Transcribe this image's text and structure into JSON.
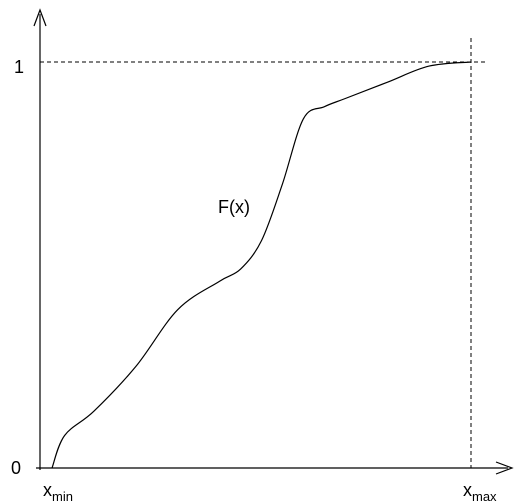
{
  "diagram": {
    "curve_label": "F(x)",
    "y_tick_top": "1",
    "y_tick_bottom": "0",
    "x_min": {
      "base": "x",
      "sub": "min"
    },
    "x_max": {
      "base": "x",
      "sub": "max"
    }
  },
  "chart_data": {
    "type": "line",
    "title": "",
    "xlabel": "",
    "ylabel": "",
    "ylim": [
      0,
      1
    ],
    "grid": false,
    "series": [
      {
        "name": "F(x)",
        "x": [
          0.0,
          0.03,
          0.1,
          0.2,
          0.3,
          0.4,
          0.45,
          0.5,
          0.55,
          0.6,
          0.65,
          0.7,
          0.8,
          0.9,
          1.0
        ],
        "y": [
          0.0,
          0.08,
          0.14,
          0.25,
          0.39,
          0.46,
          0.49,
          0.56,
          0.7,
          0.86,
          0.89,
          0.91,
          0.95,
          0.99,
          1.0
        ]
      }
    ],
    "reference_lines": [
      {
        "orientation": "horizontal",
        "y": 1,
        "style": "dashed"
      },
      {
        "orientation": "vertical",
        "x": 1,
        "style": "dashed"
      }
    ]
  },
  "colors": {
    "line": "#000000",
    "background": "#ffffff"
  }
}
